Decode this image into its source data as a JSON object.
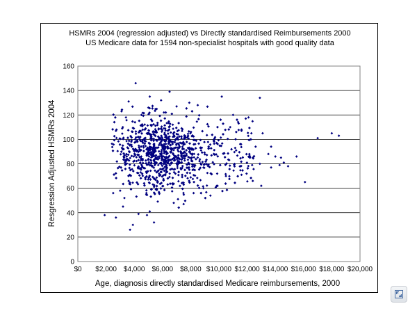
{
  "chart_data": {
    "type": "scatter",
    "title": "HSMRs 2004 (regression adjusted) vs Directly standardised Reimbursements 2000",
    "subtitle": "US Medicare data for 1594 non-specialist hospitals with good quality data",
    "xlabel": "Age, diagnosis directly standardised Medicare reimbursements, 2000",
    "ylabel": "Resgression Adjusted HSMRs 2004",
    "xlim": [
      0,
      20000
    ],
    "ylim": [
      0,
      160
    ],
    "x_ticks": [
      "$0",
      "$2,000",
      "$4,000",
      "$6,000",
      "$8,000",
      "$10,000",
      "$12,000",
      "$14,000",
      "$16,000",
      "$18,000",
      "$20,000"
    ],
    "y_ticks": [
      "0",
      "20",
      "40",
      "60",
      "80",
      "100",
      "120",
      "140",
      "160"
    ],
    "grid": "horizontal",
    "marker_color": "#000080",
    "n_points": 1594,
    "points": [
      [
        1900,
        38
      ],
      [
        2700,
        36
      ],
      [
        3200,
        45
      ],
      [
        3700,
        26
      ],
      [
        3900,
        30
      ],
      [
        5400,
        32
      ],
      [
        2500,
        56
      ],
      [
        3000,
        58
      ],
      [
        2700,
        107
      ],
      [
        3100,
        123
      ],
      [
        3600,
        131
      ],
      [
        4100,
        146
      ],
      [
        5100,
        135
      ],
      [
        5900,
        132
      ],
      [
        6500,
        139
      ],
      [
        7900,
        130
      ],
      [
        10200,
        135
      ],
      [
        12900,
        134
      ],
      [
        5000,
        126
      ],
      [
        4500,
        120
      ],
      [
        6100,
        122
      ],
      [
        7000,
        127
      ],
      [
        8500,
        128
      ],
      [
        9900,
        110
      ],
      [
        10800,
        110
      ],
      [
        11400,
        113
      ],
      [
        11900,
        117
      ],
      [
        12100,
        118
      ],
      [
        11000,
        120
      ],
      [
        11600,
        108
      ],
      [
        12300,
        105
      ],
      [
        13100,
        105
      ],
      [
        12600,
        94
      ],
      [
        12900,
        80
      ],
      [
        13500,
        88
      ],
      [
        13700,
        94
      ],
      [
        13700,
        77
      ],
      [
        14000,
        86
      ],
      [
        14400,
        85
      ],
      [
        14300,
        79
      ],
      [
        14600,
        81
      ],
      [
        14900,
        78
      ],
      [
        15500,
        86
      ],
      [
        16100,
        65
      ],
      [
        17000,
        101
      ],
      [
        18000,
        105
      ],
      [
        18500,
        103
      ],
      [
        13000,
        62
      ],
      [
        11600,
        71
      ],
      [
        12400,
        66
      ],
      [
        10500,
        70
      ],
      [
        9900,
        62
      ],
      [
        8900,
        60
      ],
      [
        9400,
        54
      ],
      [
        7500,
        47
      ],
      [
        6800,
        48
      ],
      [
        7100,
        51
      ],
      [
        8200,
        56
      ],
      [
        4900,
        38
      ],
      [
        5100,
        41
      ],
      [
        4300,
        39
      ],
      [
        3300,
        52
      ],
      [
        3600,
        66
      ]
    ]
  }
}
